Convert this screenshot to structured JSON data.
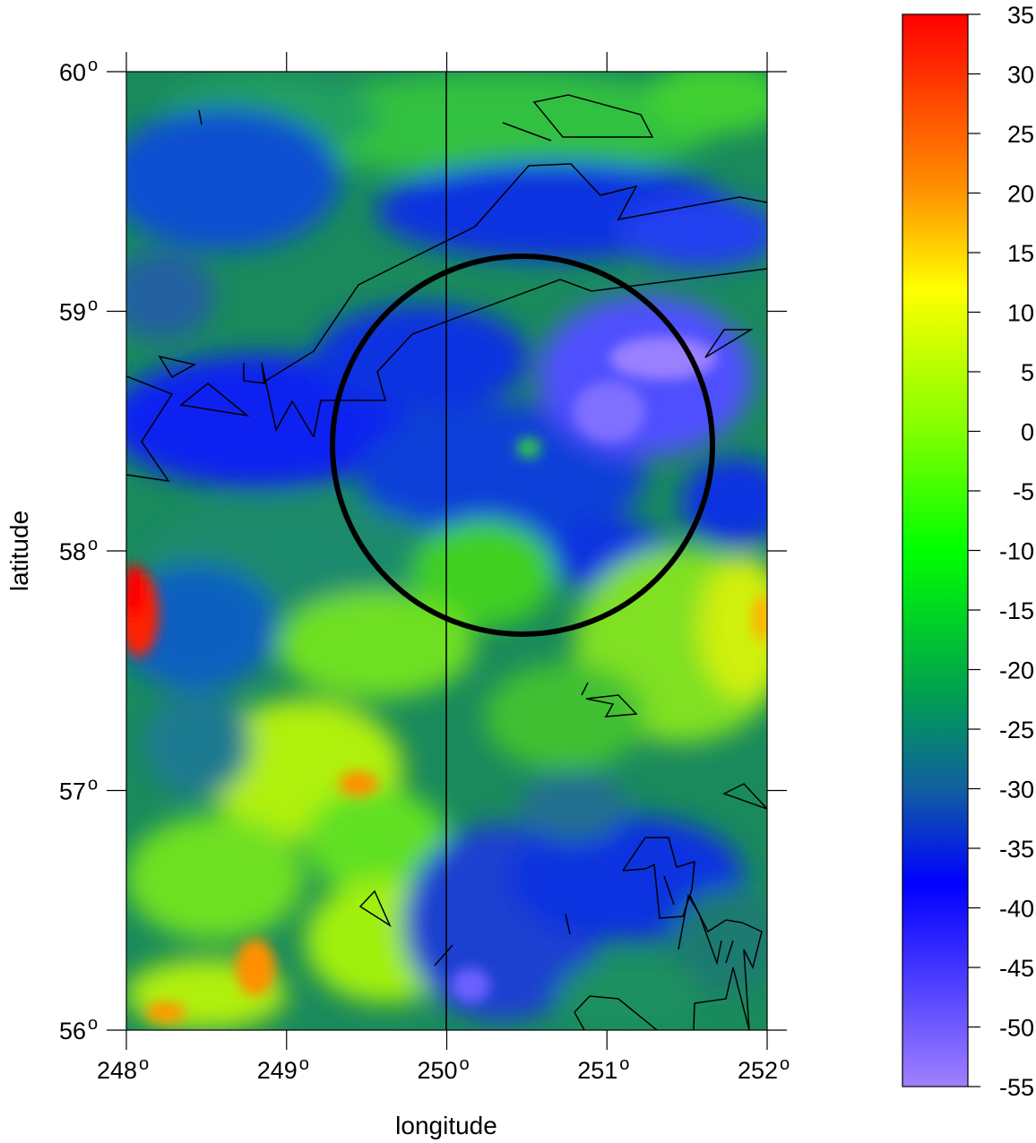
{
  "map": {
    "x_axis": {
      "title": "longitude",
      "ticks": [
        {
          "value": 248,
          "label": "248",
          "degree": "o"
        },
        {
          "value": 249,
          "label": "249",
          "degree": "o"
        },
        {
          "value": 250,
          "label": "250",
          "degree": "o"
        },
        {
          "value": 251,
          "label": "251",
          "degree": "o"
        },
        {
          "value": 252,
          "label": "252",
          "degree": "o"
        }
      ],
      "range": [
        248,
        252
      ]
    },
    "y_axis": {
      "title": "latitude",
      "ticks": [
        {
          "value": 56,
          "label": "56",
          "degree": "o"
        },
        {
          "value": 57,
          "label": "57",
          "degree": "o"
        },
        {
          "value": 58,
          "label": "58",
          "degree": "o"
        },
        {
          "value": 59,
          "label": "59",
          "degree": "o"
        },
        {
          "value": 60,
          "label": "60",
          "degree": "o"
        }
      ],
      "range": [
        56,
        60
      ]
    },
    "meridian_line_longitude": 250,
    "circle": {
      "center_lon": 250.47,
      "center_lat": 58.44,
      "radius_deg_lat": 0.79
    },
    "colorbar": {
      "range": [
        -55,
        35
      ],
      "labels": [
        "35",
        "30",
        "25",
        "20",
        "15",
        "10",
        "5",
        "0",
        "-5",
        "-10",
        "-15",
        "-20",
        "-25",
        "-30",
        "-35",
        "-40",
        "-45",
        "-50",
        "-55"
      ],
      "stops": [
        {
          "value": 35,
          "color": "#ff0000"
        },
        {
          "value": 20,
          "color": "#ff9400"
        },
        {
          "value": 12,
          "color": "#ffff00"
        },
        {
          "value": 0,
          "color": "#80ff00"
        },
        {
          "value": -10,
          "color": "#00ff00"
        },
        {
          "value": -22,
          "color": "#00a050"
        },
        {
          "value": -30,
          "color": "#1060a0"
        },
        {
          "value": -38,
          "color": "#0000ff"
        },
        {
          "value": -55,
          "color": "#a080ff"
        }
      ]
    },
    "background_color": "#1a8a5c"
  }
}
